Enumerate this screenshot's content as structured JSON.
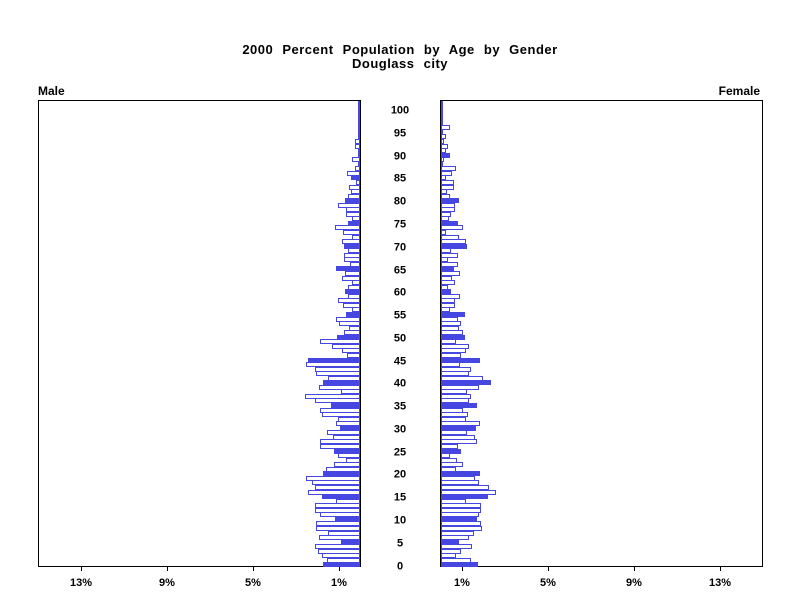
{
  "header": {
    "title_line1": "2000 Percent Population by Age by Gender",
    "title_line2": "Douglass city"
  },
  "chart_data": {
    "type": "bar",
    "subtype": "population-pyramid",
    "title": "2000 Percent Population by Age by Gender",
    "subtitle": "Douglass city",
    "left_label": "Male",
    "right_label": "Female",
    "bar_unit": "percent of population per single year of age",
    "highlight_rule": "ages divisible by 5 drawn as solid filled bars, others hollow",
    "legend": "none",
    "grid": "off",
    "colors": {
      "bar_outline": "#4646e0",
      "bar_fill_solid": "#4646e0",
      "bar_fill_regular": "#ffffff",
      "axis": "#000000"
    },
    "age_axis": {
      "min": 0,
      "max": 100,
      "tick_interval": 5,
      "tick_values": [
        100,
        95,
        90,
        85,
        80,
        75,
        70,
        65,
        60,
        55,
        50,
        45,
        40,
        35,
        30,
        25,
        20,
        15,
        10,
        5,
        0
      ]
    },
    "pct_axis": {
      "min": 0,
      "max": 15,
      "tick_values": [
        13,
        9,
        5,
        1
      ],
      "tick_suffix": "%"
    },
    "solid_exception_ages": {
      "Female": [
        85
      ]
    },
    "series": [
      {
        "name": "Male",
        "direction": "left",
        "values": [
          1.7,
          1.55,
          1.75,
          1.95,
          2.1,
          0.9,
          1.9,
          1.5,
          2.05,
          2.05,
          1.15,
          1.85,
          2.1,
          2.1,
          1.1,
          1.75,
          2.4,
          2.1,
          2.25,
          2.5,
          1.7,
          1.6,
          1.2,
          0.65,
          1.0,
          1.2,
          1.85,
          1.85,
          1.25,
          1.55,
          0.95,
          1.1,
          1.0,
          1.75,
          1.85,
          1.35,
          2.1,
          2.55,
          0.9,
          1.9,
          1.72,
          1.5,
          2.05,
          2.1,
          2.5,
          2.4,
          0.6,
          0.85,
          1.3,
          1.85,
          1.05,
          0.76,
          0.5,
          0.96,
          1.12,
          0.65,
          0.39,
          0.81,
          1.04,
          0.54,
          0.7,
          0.57,
          0.39,
          0.85,
          0.7,
          1.12,
          0.45,
          0.76,
          0.73,
          0.57,
          0.73,
          0.85,
          0.39,
          0.81,
          1.16,
          0.57,
          0.39,
          0.65,
          0.64,
          1.02,
          0.71,
          0.56,
          0.4,
          0.53,
          0.17,
          0.43,
          0.59,
          0.25,
          0.0,
          0.37,
          0.0,
          0.0,
          0.22,
          0.22,
          0.0,
          0.0,
          0.0,
          0.0,
          0.0,
          0.0,
          0.0
        ]
      },
      {
        "name": "Female",
        "direction": "right",
        "values": [
          1.72,
          1.41,
          0.68,
          0.95,
          1.46,
          0.84,
          1.28,
          1.52,
          1.92,
          1.88,
          1.67,
          1.77,
          1.88,
          1.88,
          1.15,
          2.19,
          2.54,
          2.23,
          1.77,
          1.57,
          1.83,
          0.68,
          1.02,
          0.74,
          0.4,
          0.92,
          0.79,
          1.67,
          1.57,
          1.21,
          1.61,
          1.8,
          1.15,
          1.26,
          1.0,
          1.67,
          1.3,
          1.41,
          1.21,
          1.77,
          2.34,
          1.95,
          1.3,
          1.41,
          0.87,
          1.8,
          0.95,
          1.15,
          1.3,
          0.68,
          1.1,
          1.02,
          0.84,
          0.95,
          0.79,
          1.1,
          0.4,
          0.64,
          0.64,
          0.9,
          0.48,
          0.33,
          0.64,
          0.53,
          0.87,
          0.59,
          0.79,
          0.33,
          0.79,
          0.45,
          1.21,
          1.15,
          0.84,
          0.25,
          1.0,
          0.79,
          0.37,
          0.48,
          0.64,
          0.67,
          0.85,
          0.4,
          0.29,
          0.6,
          0.6,
          0.25,
          0.5,
          0.7,
          0.0,
          0.12,
          0.4,
          0.25,
          0.33,
          0.15,
          0.22,
          0.0,
          0.42,
          0.0,
          0.0,
          0.0,
          0.0
        ]
      }
    ]
  }
}
